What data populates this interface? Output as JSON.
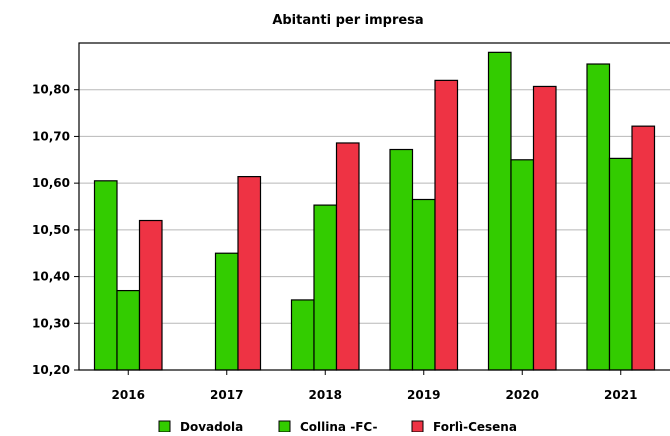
{
  "chart_data": {
    "type": "bar",
    "title": "Abitanti per impresa",
    "xlabel": "",
    "ylabel": "",
    "categories": [
      "2016",
      "2017",
      "2018",
      "2019",
      "2020",
      "2021"
    ],
    "series": [
      {
        "name": "Dovadola",
        "color": "#33cc00",
        "values": [
          10.605,
          null,
          10.35,
          10.672,
          10.88,
          10.855
        ]
      },
      {
        "name": "Collina -FC-",
        "color": "#33cc00",
        "values": [
          10.37,
          10.45,
          10.553,
          10.565,
          10.65,
          10.653
        ]
      },
      {
        "name": "Forlì-Cesena",
        "color": "#ee3344",
        "values": [
          10.52,
          10.614,
          10.686,
          10.82,
          10.807,
          10.722
        ]
      }
    ],
    "ylim": [
      10.2,
      10.9
    ],
    "yticks": [
      {
        "value": 10.2,
        "label": "10,20"
      },
      {
        "value": 10.3,
        "label": "10,30"
      },
      {
        "value": 10.4,
        "label": "10,40"
      },
      {
        "value": 10.5,
        "label": "10,50"
      },
      {
        "value": 10.6,
        "label": "10,60"
      },
      {
        "value": 10.7,
        "label": "10,70"
      },
      {
        "value": 10.8,
        "label": "10,80"
      }
    ],
    "grid": true,
    "legend_position": "bottom"
  }
}
